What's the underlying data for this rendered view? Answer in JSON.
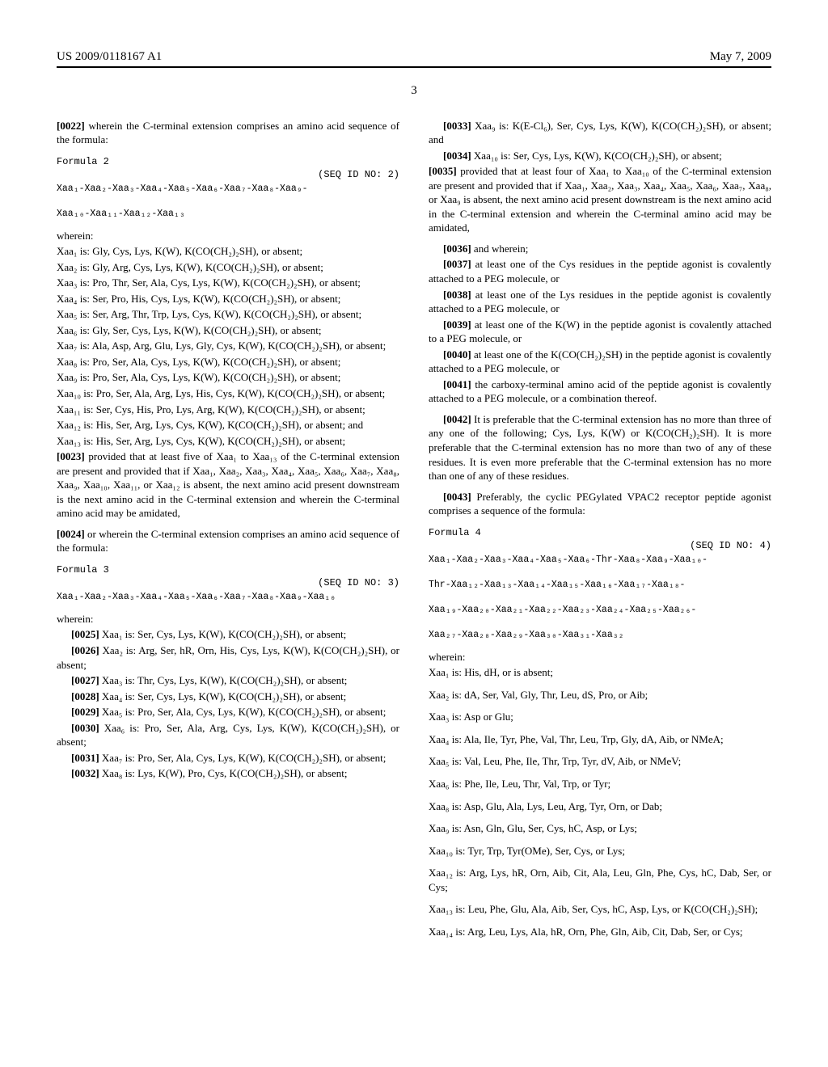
{
  "header": {
    "pub_num": "US 2009/0118167 A1",
    "date": "May 7, 2009"
  },
  "page_num": "3",
  "left": {
    "p0022": {
      "num": "[0022]",
      "text": " wherein the C-terminal extension comprises an amino acid sequence of the formula:"
    },
    "formula2": {
      "label": "Formula 2",
      "seqid": "(SEQ ID NO: 2)",
      "seq": "Xaa₁-Xaa₂-Xaa₃-Xaa₄-Xaa₅-Xaa₆-Xaa₇-Xaa₈-Xaa₉-\n\nXaa₁₀-Xaa₁₁-Xaa₁₂-Xaa₁₃"
    },
    "wherein1": "wherein:",
    "defs2": [
      "Xaa₁ is: Gly, Cys, Lys, K(W), K(CO(CH₂)₂SH), or absent;",
      "Xaa₂ is: Gly, Arg, Cys, Lys, K(W), K(CO(CH₂)₂SH), or absent;",
      "Xaa₃ is: Pro, Thr, Ser, Ala, Cys, Lys, K(W), K(CO(CH₂)₂SH), or absent;",
      "Xaa₄ is: Ser, Pro, His, Cys, Lys, K(W), K(CO(CH₂)₂SH), or absent;",
      "Xaa₅ is: Ser, Arg, Thr, Trp, Lys, Cys, K(W), K(CO(CH₂)₂SH), or absent;",
      "Xaa₆ is: Gly, Ser, Cys, Lys, K(W), K(CO(CH₂)₂SH), or absent;",
      "Xaa₇ is: Ala, Asp, Arg, Glu, Lys, Gly, Cys, K(W), K(CO(CH₂)₂SH), or absent;",
      "Xaa₈ is: Pro, Ser, Ala, Cys, Lys, K(W), K(CO(CH₂)₂SH), or absent;",
      "Xaa₉ is: Pro, Ser, Ala, Cys, Lys, K(W), K(CO(CH₂)₂SH), or absent;",
      "Xaa₁₀ is: Pro, Ser, Ala, Arg, Lys, His, Cys, K(W), K(CO(CH₂)₂SH), or absent;",
      "Xaa₁₁ is: Ser, Cys, His, Pro, Lys, Arg, K(W), K(CO(CH₂)₂SH), or absent;",
      "Xaa₁₂ is: His, Ser, Arg, Lys, Cys, K(W), K(CO(CH₂)₂SH), or absent; and",
      "Xaa₁₃ is: His, Ser, Arg, Lys, Cys, K(W), K(CO(CH₂)₂SH), or absent;"
    ],
    "p0023": {
      "num": "[0023]",
      "text": " provided that at least five of Xaa₁ to Xaa₁₃ of the C-terminal extension are present and provided that if Xaa₁, Xaa₂, Xaa₃, Xaa₄, Xaa₅, Xaa₆, Xaa₇, Xaa₈, Xaa₉, Xaa₁₀, Xaa₁₁, or Xaa₁₂ is absent, the next amino acid present downstream is the next amino acid in the C-terminal extension and wherein the C-terminal amino acid may be amidated,"
    },
    "p0024": {
      "num": "[0024]",
      "text": " or wherein the C-terminal extension comprises an amino acid sequence of the formula:"
    },
    "formula3": {
      "label": "Formula 3",
      "seqid": "(SEQ ID NO: 3)",
      "seq": "Xaa₁-Xaa₂-Xaa₃-Xaa₄-Xaa₅-Xaa₆-Xaa₇-Xaa₈-Xaa₉-Xaa₁₀"
    },
    "wherein2": "wherein:",
    "defs3": [
      {
        "num": "[0025]",
        "text": " Xaa₁ is: Ser, Cys, Lys, K(W), K(CO(CH₂)₂SH), or absent;"
      },
      {
        "num": "[0026]",
        "text": " Xaa₂ is: Arg, Ser, hR, Orn, His, Cys, Lys, K(W), K(CO(CH₂)₂SH), or absent;"
      },
      {
        "num": "[0027]",
        "text": " Xaa₃ is: Thr, Cys, Lys, K(W), K(CO(CH₂)₂SH), or absent;"
      },
      {
        "num": "[0028]",
        "text": " Xaa₄ is: Ser, Cys, Lys, K(W), K(CO(CH₂)₂SH), or absent;"
      },
      {
        "num": "[0029]",
        "text": " Xaa₅ is: Pro, Ser, Ala, Cys, Lys, K(W), K(CO(CH₂)₂SH), or absent;"
      },
      {
        "num": "[0030]",
        "text": " Xaa₆ is: Pro, Ser, Ala, Arg, Cys, Lys, K(W), K(CO(CH₂)₂SH), or absent;"
      },
      {
        "num": "[0031]",
        "text": " Xaa₇ is: Pro, Ser, Ala, Cys, Lys, K(W), K(CO(CH₂)₂SH), or absent;"
      },
      {
        "num": "[0032]",
        "text": " Xaa₈ is: Lys, K(W), Pro, Cys, K(CO(CH₂)₂SH), or absent;"
      }
    ]
  },
  "right": {
    "defs3b": [
      {
        "num": "[0033]",
        "text": " Xaa₉ is: K(E-Cl₆), Ser, Cys, Lys, K(W), K(CO(CH₂)₂SH), or absent; and"
      },
      {
        "num": "[0034]",
        "text": " Xaa₁₀ is: Ser, Cys, Lys, K(W), K(CO(CH₂)₂SH), or absent;"
      }
    ],
    "p0035": {
      "num": "[0035]",
      "text": " provided that at least four of Xaa₁ to Xaa₁₀ of the C-terminal extension are present and provided that if Xaa₁, Xaa₂, Xaa₃, Xaa₄, Xaa₅, Xaa₆, Xaa₇, Xaa₈, or Xaa₉ is absent, the next amino acid present downstream is the next amino acid in the C-terminal extension and wherein the C-terminal amino acid may be amidated,"
    },
    "p0036": {
      "num": "[0036]",
      "text": " and wherein;"
    },
    "p0037": {
      "num": "[0037]",
      "text": " at least one of the Cys residues in the peptide agonist is covalently attached to a PEG molecule, or"
    },
    "p0038": {
      "num": "[0038]",
      "text": " at least one of the Lys residues in the peptide agonist is covalently attached to a PEG molecule, or"
    },
    "p0039": {
      "num": "[0039]",
      "text": " at least one of the K(W) in the peptide agonist is covalently attached to a PEG molecule, or"
    },
    "p0040": {
      "num": "[0040]",
      "text": " at least one of the K(CO(CH₂)₂SH) in the peptide agonist is covalently attached to a PEG molecule, or"
    },
    "p0041": {
      "num": "[0041]",
      "text": " the carboxy-terminal amino acid of the peptide agonist is covalently attached to a PEG molecule, or a combination thereof."
    },
    "p0042": {
      "num": "[0042]",
      "text": " It is preferable that the C-terminal extension has no more than three of any one of the following; Cys, Lys, K(W) or K(CO(CH₂)₂SH). It is more preferable that the C-terminal extension has no more than two of any of these residues. It is even more preferable that the C-terminal extension has no more than one of any of these residues."
    },
    "p0043": {
      "num": "[0043]",
      "text": " Preferably, the cyclic PEGylated VPAC2 receptor peptide agonist comprises a sequence of the formula:"
    },
    "formula4": {
      "label": "Formula 4",
      "seqid": "(SEQ ID NO: 4)",
      "seq": "Xaa₁-Xaa₂-Xaa₃-Xaa₄-Xaa₅-Xaa₆-Thr-Xaa₈-Xaa₉-Xaa₁₀-\n\nThr-Xaa₁₂-Xaa₁₃-Xaa₁₄-Xaa₁₅-Xaa₁₆-Xaa₁₇-Xaa₁₈-\n\nXaa₁₉-Xaa₂₀-Xaa₂₁-Xaa₂₂-Xaa₂₃-Xaa₂₄-Xaa₂₅-Xaa₂₆-\n\nXaa₂₇-Xaa₂₈-Xaa₂₉-Xaa₃₀-Xaa₃₁-Xaa₃₂"
    },
    "wherein3": "wherein:",
    "defs4": [
      "Xaa₁ is: His, dH, or is absent;",
      "Xaa₂ is: dA, Ser, Val, Gly, Thr, Leu, dS, Pro, or Aib;",
      "Xaa₃ is: Asp or Glu;",
      "Xaa₄ is: Ala, Ile, Tyr, Phe, Val, Thr, Leu, Trp, Gly, dA, Aib, or NMeA;",
      "Xaa₅ is: Val, Leu, Phe, Ile, Thr, Trp, Tyr, dV, Aib, or NMeV;",
      "Xaa₆ is: Phe, Ile, Leu, Thr, Val, Trp, or Tyr;",
      "Xaa₈ is: Asp, Glu, Ala, Lys, Leu, Arg, Tyr, Orn, or Dab;",
      "Xaa₉ is: Asn, Gln, Glu, Ser, Cys, hC, Asp, or Lys;",
      "Xaa₁₀ is: Tyr, Trp, Tyr(OMe), Ser, Cys, or Lys;",
      "Xaa₁₂ is: Arg, Lys, hR, Orn, Aib, Cit, Ala, Leu, Gln, Phe, Cys, hC, Dab, Ser, or Cys;",
      "Xaa₁₃ is: Leu, Phe, Glu, Ala, Aib, Ser, Cys, hC, Asp, Lys, or K(CO(CH₂)₂SH);",
      "Xaa₁₄ is: Arg, Leu, Lys, Ala, hR, Orn, Phe, Gln, Aib, Cit, Dab, Ser, or Cys;"
    ]
  }
}
